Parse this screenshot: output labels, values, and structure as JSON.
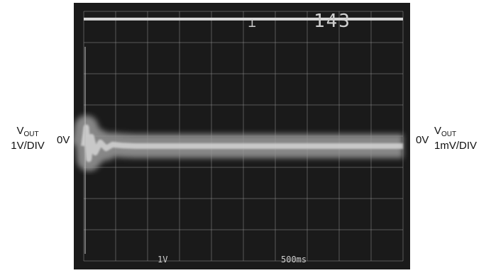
{
  "chart_data": {
    "type": "line",
    "title": "",
    "left_axis": {
      "signal": "V",
      "subscript": "OUT",
      "scale": "1V/DIV",
      "zero_label": "0V"
    },
    "right_axis": {
      "signal": "V",
      "subscript": "OUT",
      "scale": "1mV/DIV",
      "zero_label": "0V"
    },
    "screen_readouts": {
      "top_right": "143",
      "channel_scale": "1V",
      "time_scale": "500ms"
    },
    "grid": {
      "divisions_x": 10,
      "divisions_y": 8,
      "shown": true
    },
    "xlim": [
      0,
      5000
    ],
    "x_unit": "ms",
    "series": [
      {
        "scale": "1V/DIV",
        "x": [
          0,
          5000
        ],
        "y": [
          3.7,
          3.7
        ]
      },
      {
        "scale": "1mV/DIV",
        "x": [
          0,
          40,
          80,
          120,
          180,
          260,
          350,
          450,
          600,
          800,
          1000,
          1500,
          2000,
          3000,
          4000,
          5000
        ],
        "y": [
          0,
          1.0,
          -0.7,
          0.5,
          -0.35,
          0.2,
          -0.12,
          0.08,
          0.03,
          0.0,
          0.0,
          0.0,
          0.0,
          0.0,
          0.0,
          0.0
        ]
      }
    ],
    "colors": {
      "screen": "#1a1a1a",
      "grid": "#8c8c8c",
      "trace": "#d9d9d9"
    }
  }
}
